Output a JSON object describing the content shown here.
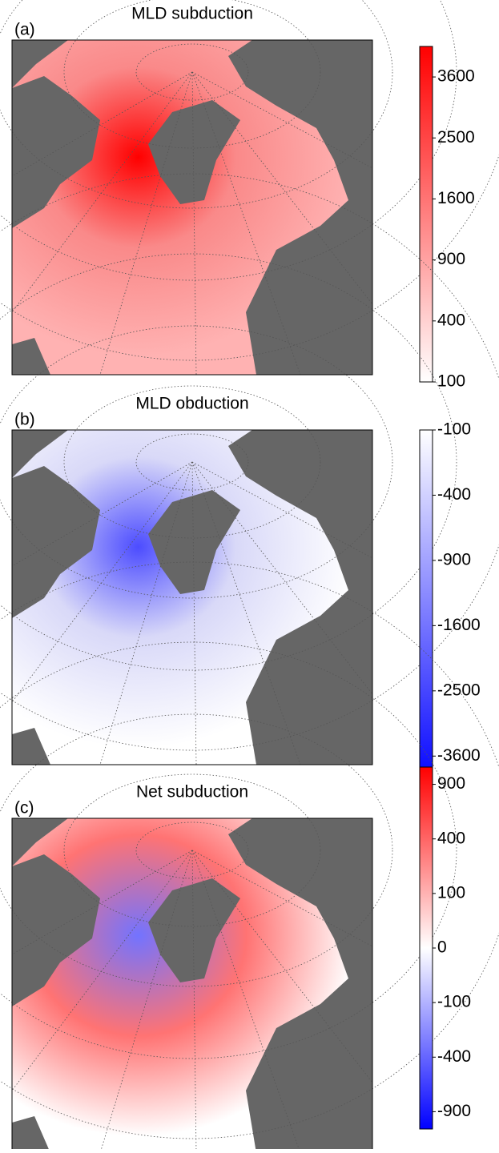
{
  "chart_data": [
    {
      "type": "map",
      "panel_label": "(a)",
      "title": "MLD subduction",
      "scale": "sqrt",
      "clim": [
        100,
        4225
      ],
      "cticks": [
        100,
        400,
        900,
        1600,
        2500,
        3600
      ],
      "colors": [
        "#ffffff",
        "#ff0000"
      ]
    },
    {
      "type": "map",
      "panel_label": "(b)",
      "title": "MLD obduction",
      "scale": "sqrt",
      "clim": [
        -4225,
        -100
      ],
      "cticks": [
        -100,
        -400,
        -900,
        -1600,
        -2500,
        -3600
      ],
      "colors": [
        "#0000ff",
        "#ffffff"
      ]
    },
    {
      "type": "map",
      "panel_label": "(c)",
      "title": "Net subduction",
      "scale": "signed-sqrt",
      "clim": [
        -1100,
        1100
      ],
      "cticks": [
        900,
        400,
        100,
        0,
        -100,
        -400,
        -900
      ],
      "colors": [
        "#0000ff",
        "#ffffff",
        "#ff0000"
      ]
    }
  ]
}
